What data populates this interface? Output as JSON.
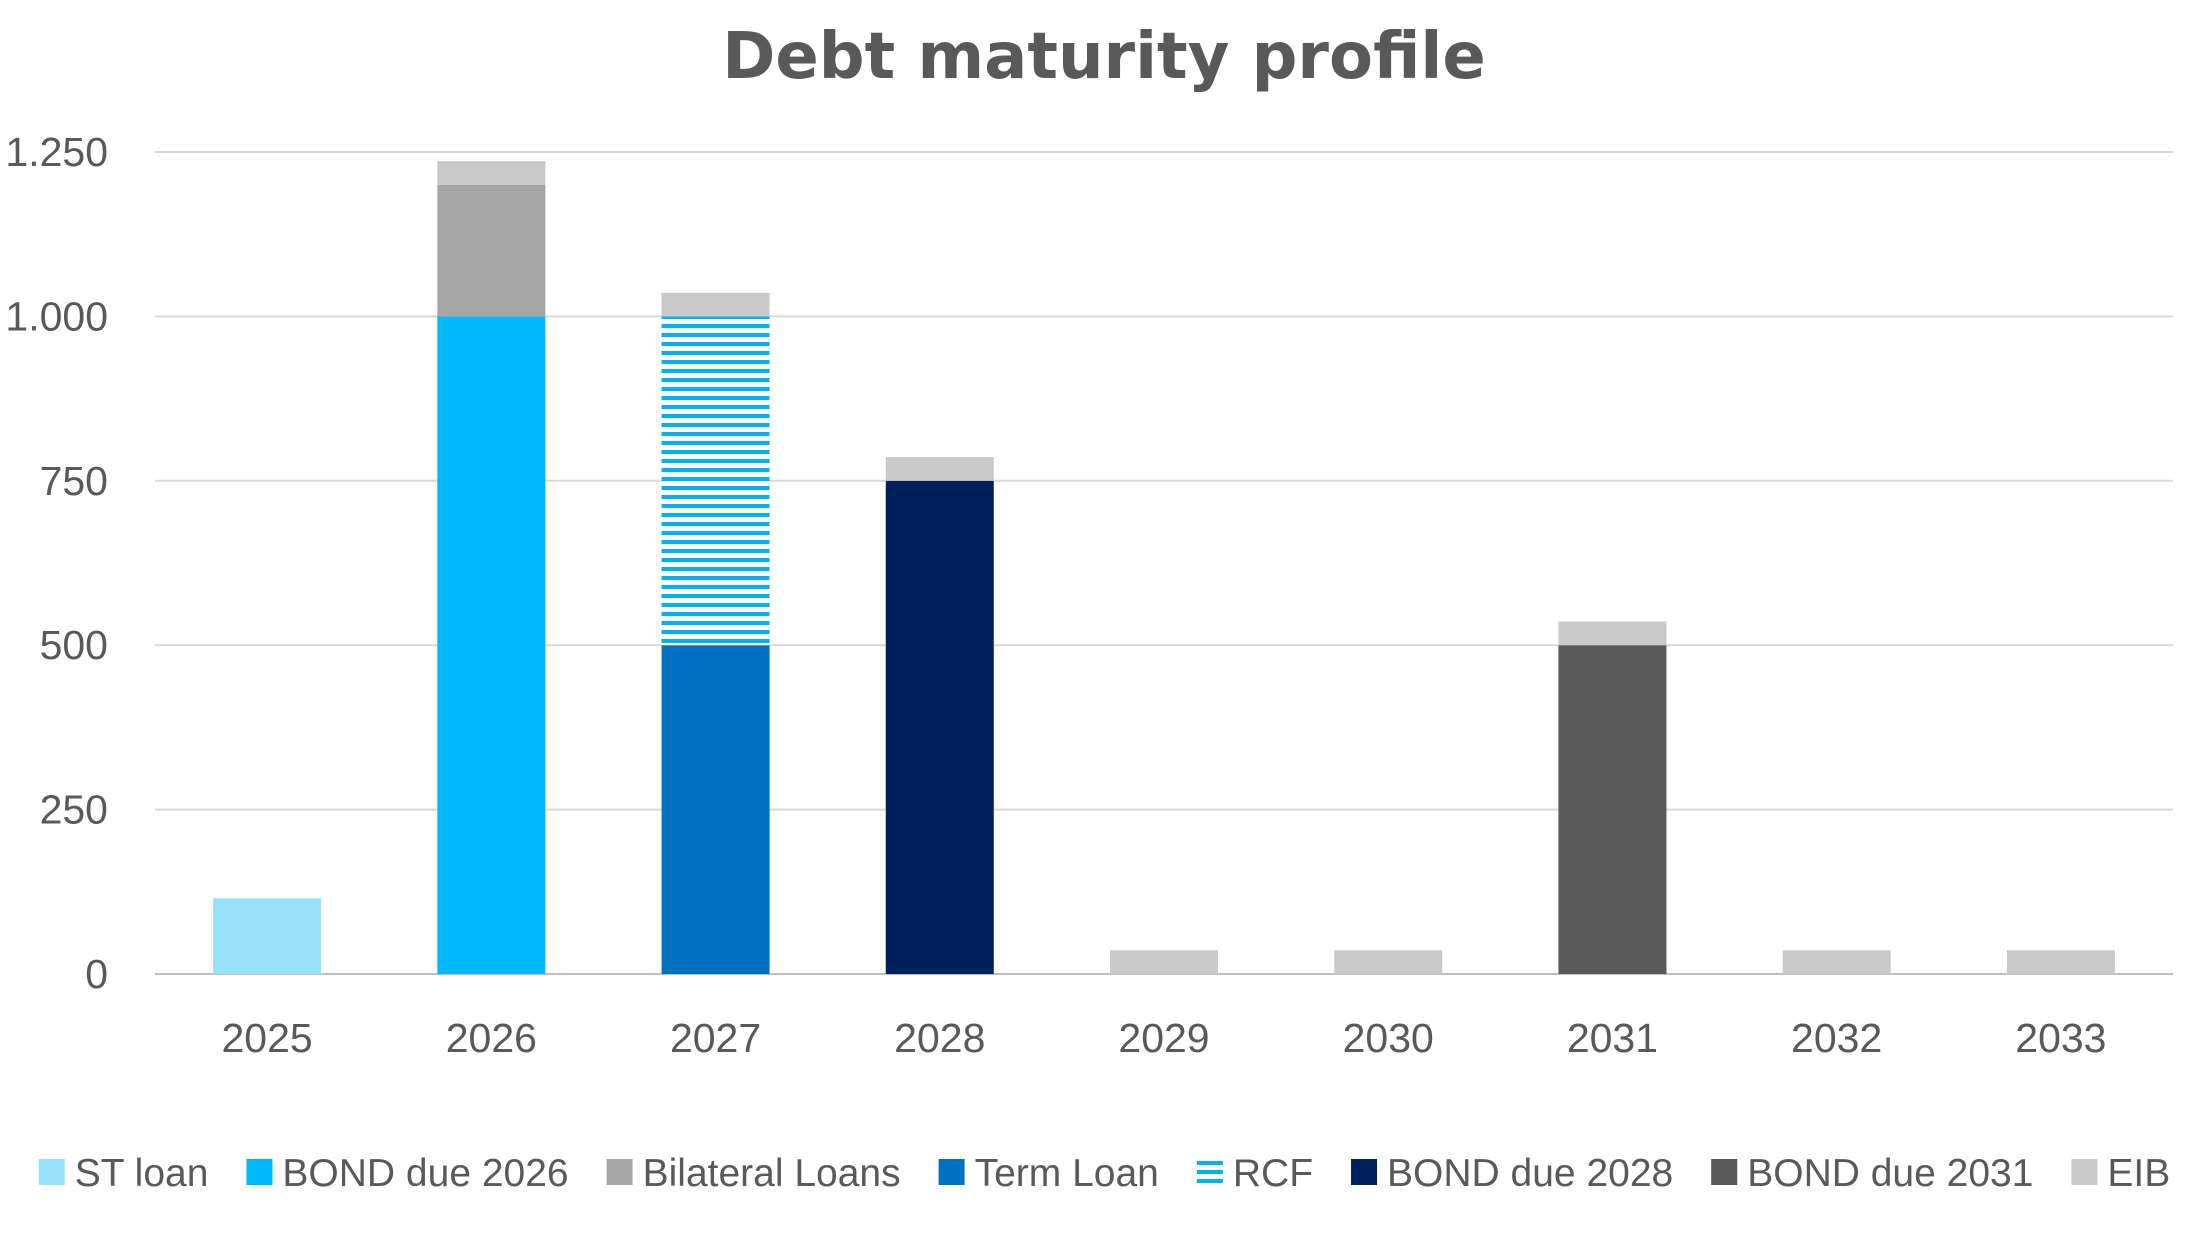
{
  "chart_data": {
    "type": "bar",
    "stacked": true,
    "title": "Debt maturity profile",
    "xlabel": "",
    "ylabel": "",
    "categories": [
      "2025",
      "2026",
      "2027",
      "2028",
      "2029",
      "2030",
      "2031",
      "2032",
      "2033"
    ],
    "ylim": [
      0,
      1250
    ],
    "yticks": [
      0,
      250,
      500,
      750,
      1000,
      1250
    ],
    "ytick_labels": [
      "0",
      "250",
      "500",
      "750",
      "1.000",
      "1.250"
    ],
    "grid": true,
    "legend_position": "bottom",
    "series": [
      {
        "name": "ST loan",
        "color": "#97E1FB",
        "pattern": "solid",
        "values": [
          115,
          0,
          0,
          0,
          0,
          0,
          0,
          0,
          0
        ]
      },
      {
        "name": "BOND due 2026",
        "color": "#00B7FA",
        "pattern": "solid",
        "values": [
          0,
          1000,
          0,
          0,
          0,
          0,
          0,
          0,
          0
        ]
      },
      {
        "name": "Bilateral Loans",
        "color": "#A6A6A6",
        "pattern": "solid",
        "values": [
          0,
          200,
          0,
          0,
          0,
          0,
          0,
          0,
          0
        ]
      },
      {
        "name": "Term Loan",
        "color": "#0070C0",
        "pattern": "solid",
        "values": [
          0,
          0,
          500,
          0,
          0,
          0,
          0,
          0,
          0
        ]
      },
      {
        "name": "RCF",
        "color": "#00B0F0",
        "pattern": "horizontal-stripes",
        "values": [
          0,
          0,
          500,
          0,
          0,
          0,
          0,
          0,
          0
        ]
      },
      {
        "name": "BOND due 2028",
        "color": "#00205B",
        "pattern": "solid",
        "values": [
          0,
          0,
          0,
          750,
          0,
          0,
          0,
          0,
          0
        ]
      },
      {
        "name": "BOND due 2031",
        "color": "#595959",
        "pattern": "solid",
        "values": [
          0,
          0,
          0,
          0,
          0,
          0,
          500,
          0,
          0
        ]
      },
      {
        "name": "EIB",
        "color": "#C9C9C9",
        "pattern": "solid",
        "values": [
          0,
          36,
          36,
          36,
          36,
          36,
          36,
          36,
          36
        ]
      }
    ]
  }
}
